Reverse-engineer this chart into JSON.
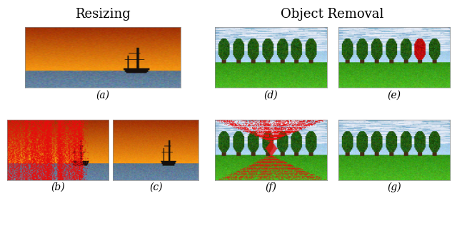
{
  "title_resizing": "Resizing",
  "title_object_removal": "Object Removal",
  "labels": [
    "(a)",
    "(b)",
    "(c)",
    "(d)",
    "(e)",
    "(f)",
    "(g)"
  ],
  "background_color": "#ffffff",
  "title_fontsize": 13,
  "label_fontsize": 10,
  "fig_width": 6.4,
  "fig_height": 3.2
}
